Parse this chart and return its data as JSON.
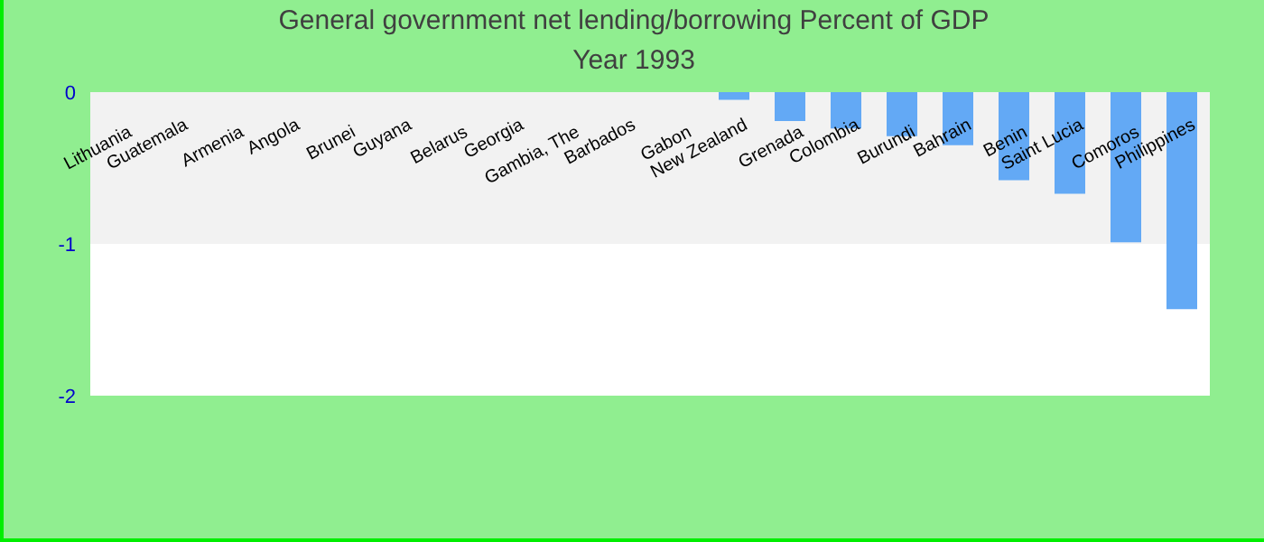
{
  "chart_data": {
    "type": "bar",
    "title": "General government net lending/borrowing  Percent of GDP",
    "subtitle": "Year 1993",
    "categories": [
      "Lithuania",
      "Guatemala",
      "Armenia",
      "Angola",
      "Brunei",
      "Guyana",
      "Belarus",
      "Georgia",
      "Gambia, The",
      "Barbados",
      "Gabon",
      "New Zealand",
      "Grenada",
      "Colombia",
      "Burundi",
      "Bahrain",
      "Benin",
      "Saint Lucia",
      "Comoros",
      "Philippines"
    ],
    "values": [
      0,
      0,
      0,
      0,
      0,
      0,
      0,
      0,
      0,
      0,
      0,
      -0.05,
      -0.19,
      -0.24,
      -0.29,
      -0.35,
      -0.58,
      -0.67,
      -0.99,
      -1.43
    ],
    "color": "#63a9f5",
    "ylim": [
      -2,
      0
    ],
    "yticks": [
      -2,
      -1,
      0
    ],
    "bands": [
      {
        "axis": "y",
        "from": 0,
        "to": -1,
        "color": "#f2f2f2"
      },
      {
        "axis": "y",
        "from": -1,
        "to": -2,
        "color": "#ffffff"
      }
    ],
    "legend": false
  }
}
